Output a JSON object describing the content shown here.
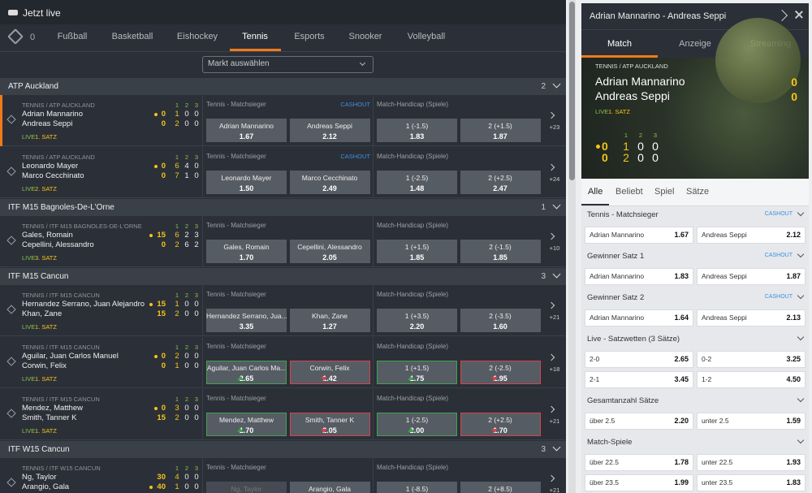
{
  "left": {
    "title": "Jetzt live",
    "fav_count": "0",
    "sports": [
      "Fußball",
      "Basketball",
      "Eishockey",
      "Tennis",
      "Esports",
      "Snooker",
      "Volleyball"
    ],
    "active_sport": 3,
    "market_select": "Markt auswählen",
    "groups": [
      {
        "name": "ATP Auckland",
        "count": "2",
        "matches": [
          {
            "league": "TENNIS / ATP AUCKLAND",
            "players": [
              "Adrian Mannarino",
              "Andreas Seppi"
            ],
            "serve": 0,
            "points": [
              "0",
              "0"
            ],
            "set_headers": [
              "1",
              "2",
              "3"
            ],
            "scores": [
              [
                "1",
                "0",
                "0"
              ],
              [
                "2",
                "0",
                "0"
              ]
            ],
            "live": "LIVE",
            "period": "1. SATZ",
            "more": "+23",
            "selected": true,
            "markets": [
              {
                "title": "Tennis - Matchsieger",
                "cashout": "CASHOUT",
                "odds": [
                  {
                    "label": "Adrian Mannarino",
                    "value": "1.67"
                  },
                  {
                    "label": "Andreas Seppi",
                    "value": "2.12"
                  }
                ]
              },
              {
                "title": "Match-Handicap (Spiele)",
                "odds": [
                  {
                    "label": "1 (-1.5)",
                    "value": "1.83"
                  },
                  {
                    "label": "2 (+1.5)",
                    "value": "1.87"
                  }
                ]
              }
            ]
          },
          {
            "league": "TENNIS / ATP AUCKLAND",
            "players": [
              "Leonardo Mayer",
              "Marco Cecchinato"
            ],
            "serve": 0,
            "points": [
              "0",
              "0"
            ],
            "set_headers": [
              "1",
              "2",
              "3"
            ],
            "scores": [
              [
                "6",
                "4",
                "0"
              ],
              [
                "7",
                "1",
                "0"
              ]
            ],
            "live": "LIVE",
            "period": "2. SATZ",
            "more": "+24",
            "markets": [
              {
                "title": "Tennis - Matchsieger",
                "cashout": "CASHOUT",
                "odds": [
                  {
                    "label": "Leonardo Mayer",
                    "value": "1.50"
                  },
                  {
                    "label": "Marco Cecchinato",
                    "value": "2.49"
                  }
                ]
              },
              {
                "title": "Match-Handicap (Spiele)",
                "odds": [
                  {
                    "label": "1 (-2.5)",
                    "value": "1.48"
                  },
                  {
                    "label": "2 (+2.5)",
                    "value": "2.47"
                  }
                ]
              }
            ]
          }
        ]
      },
      {
        "name": "ITF M15 Bagnoles-De-L'Orne",
        "count": "1",
        "matches": [
          {
            "league": "TENNIS / ITF M15 BAGNOLES-DE-L'ORNE",
            "players": [
              "Gales, Romain",
              "Cepellini, Alessandro"
            ],
            "serve": 0,
            "points": [
              "15",
              "0"
            ],
            "set_headers": [
              "1",
              "2",
              "3"
            ],
            "scores": [
              [
                "6",
                "2",
                "3"
              ],
              [
                "2",
                "6",
                "2"
              ]
            ],
            "live": "LIVE",
            "period": "3. SATZ",
            "more": "+10",
            "markets": [
              {
                "title": "Tennis - Matchsieger",
                "odds": [
                  {
                    "label": "Gales, Romain",
                    "value": "1.70"
                  },
                  {
                    "label": "Cepellini, Alessandro",
                    "value": "2.05"
                  }
                ]
              },
              {
                "title": "Match-Handicap (Spiele)",
                "odds": [
                  {
                    "label": "1 (+1.5)",
                    "value": "1.85"
                  },
                  {
                    "label": "2 (-1.5)",
                    "value": "1.85"
                  }
                ]
              }
            ]
          }
        ]
      },
      {
        "name": "ITF M15 Cancun",
        "count": "3",
        "matches": [
          {
            "league": "TENNIS / ITF M15 CANCUN",
            "players": [
              "Hernandez Serrano, Juan Alejandro",
              "Khan, Zane"
            ],
            "serve": 0,
            "points": [
              "15",
              "15"
            ],
            "set_headers": [
              "1",
              "2",
              "3"
            ],
            "scores": [
              [
                "1",
                "0",
                "0"
              ],
              [
                "2",
                "0",
                "0"
              ]
            ],
            "live": "LIVE",
            "period": "1. SATZ",
            "more": "+21",
            "markets": [
              {
                "title": "Tennis - Matchsieger",
                "odds": [
                  {
                    "label": "Hernandez Serrano, Jua...",
                    "value": "3.35"
                  },
                  {
                    "label": "Khan, Zane",
                    "value": "1.27"
                  }
                ]
              },
              {
                "title": "Match-Handicap (Spiele)",
                "odds": [
                  {
                    "label": "1 (+3.5)",
                    "value": "2.20"
                  },
                  {
                    "label": "2 (-3.5)",
                    "value": "1.60"
                  }
                ]
              }
            ]
          },
          {
            "league": "TENNIS / ITF M15 CANCUN",
            "players": [
              "Aguilar, Juan Carlos Manuel",
              "Corwin, Felix"
            ],
            "serve": 0,
            "points": [
              "0",
              "0"
            ],
            "set_headers": [
              "1",
              "2",
              "3"
            ],
            "scores": [
              [
                "2",
                "0",
                "0"
              ],
              [
                "1",
                "0",
                "0"
              ]
            ],
            "live": "LIVE",
            "period": "1. SATZ",
            "more": "+18",
            "markets": [
              {
                "title": "Tennis - Matchsieger",
                "odds": [
                  {
                    "label": "Aguilar, Juan Carlos Ma...",
                    "value": "2.65",
                    "trend": "up"
                  },
                  {
                    "label": "Corwin, Felix",
                    "value": "1.42",
                    "trend": "down"
                  }
                ]
              },
              {
                "title": "Match-Handicap (Spiele)",
                "odds": [
                  {
                    "label": "1 (+1.5)",
                    "value": "1.75",
                    "trend": "up"
                  },
                  {
                    "label": "2 (-2.5)",
                    "value": "1.95",
                    "trend": "down"
                  }
                ]
              }
            ]
          },
          {
            "league": "TENNIS / ITF M15 CANCUN",
            "players": [
              "Mendez, Matthew",
              "Smith, Tanner K"
            ],
            "serve": 0,
            "points": [
              "0",
              "15"
            ],
            "set_headers": [
              "1",
              "2",
              "3"
            ],
            "scores": [
              [
                "3",
                "0",
                "0"
              ],
              [
                "2",
                "0",
                "0"
              ]
            ],
            "live": "LIVE",
            "period": "1. SATZ",
            "more": "+21",
            "markets": [
              {
                "title": "Tennis - Matchsieger",
                "odds": [
                  {
                    "label": "Mendez, Matthew",
                    "value": "1.70",
                    "trend": "up"
                  },
                  {
                    "label": "Smith, Tanner K",
                    "value": "2.05",
                    "trend": "down"
                  }
                ]
              },
              {
                "title": "Match-Handicap (Spiele)",
                "odds": [
                  {
                    "label": "1 (-2.5)",
                    "value": "2.00",
                    "trend": "up"
                  },
                  {
                    "label": "2 (+2.5)",
                    "value": "1.70",
                    "trend": "down"
                  }
                ]
              }
            ]
          }
        ]
      },
      {
        "name": "ITF W15 Cancun",
        "count": "3",
        "matches": [
          {
            "league": "TENNIS / ITF W15 CANCUN",
            "players": [
              "Ng, Taylor",
              "Arangio, Gala"
            ],
            "serve": 1,
            "points": [
              "30",
              "40"
            ],
            "set_headers": [
              "1",
              "2",
              "3"
            ],
            "scores": [
              [
                "4",
                "0",
                "0"
              ],
              [
                "1",
                "0",
                "0"
              ]
            ],
            "more": "+21",
            "markets": [
              {
                "title": "Tennis - Matchsieger",
                "odds": [
                  {
                    "label": "Ng, Taylor",
                    "disabled": true
                  },
                  {
                    "label": "Arangio, Gala"
                  }
                ]
              },
              {
                "title": "Match-Handicap (Spiele)",
                "odds": [
                  {
                    "label": "1 (-8.5)"
                  },
                  {
                    "label": "2 (+8.5)"
                  }
                ]
              }
            ]
          }
        ]
      }
    ]
  },
  "right": {
    "title": "Adrian Mannarino - Andreas Seppi",
    "tabs": [
      "Match",
      "Anzeige",
      "Streaming"
    ],
    "active_tab": 0,
    "score": {
      "league": "TENNIS / ATP AUCKLAND",
      "players": [
        "Adrian Mannarino",
        "Andreas Seppi"
      ],
      "points": [
        "0",
        "0"
      ],
      "live": "LIVE",
      "period": "1. SATZ",
      "serve": 0,
      "set_headers": [
        "1",
        "2",
        "3"
      ],
      "scores": [
        [
          "1",
          "0",
          "0"
        ],
        [
          "2",
          "0",
          "0"
        ]
      ]
    },
    "subtabs": [
      "Alle",
      "Beliebt",
      "Spiel",
      "Sätze"
    ],
    "active_subtab": 0,
    "markets": [
      {
        "title": "Tennis - Matchsieger",
        "cashout": "CASHOUT",
        "odds": [
          {
            "label": "Adrian Mannarino",
            "value": "1.67"
          },
          {
            "label": "Andreas Seppi",
            "value": "2.12"
          }
        ]
      },
      {
        "title": "Gewinner Satz 1",
        "cashout": "CASHOUT",
        "odds": [
          {
            "label": "Adrian Mannarino",
            "value": "1.83"
          },
          {
            "label": "Andreas Seppi",
            "value": "1.87"
          }
        ]
      },
      {
        "title": "Gewinner Satz 2",
        "cashout": "CASHOUT",
        "odds": [
          {
            "label": "Adrian Mannarino",
            "value": "1.64"
          },
          {
            "label": "Andreas Seppi",
            "value": "2.13"
          }
        ]
      },
      {
        "title": "Live - Satzwetten (3 Sätze)",
        "odds": [
          {
            "label": "2-0",
            "value": "2.65"
          },
          {
            "label": "0-2",
            "value": "3.25"
          },
          {
            "label": "2-1",
            "value": "3.45"
          },
          {
            "label": "1-2",
            "value": "4.50"
          }
        ]
      },
      {
        "title": "Gesamtanzahl Sätze",
        "odds": [
          {
            "label": "über 2.5",
            "value": "2.20"
          },
          {
            "label": "unter 2.5",
            "value": "1.59"
          }
        ]
      },
      {
        "title": "Match-Spiele",
        "odds": [
          {
            "label": "über 22.5",
            "value": "1.78"
          },
          {
            "label": "unter 22.5",
            "value": "1.93"
          },
          {
            "label": "über 23.5",
            "value": "1.99"
          },
          {
            "label": "unter 23.5",
            "value": "1.83"
          }
        ]
      }
    ]
  }
}
